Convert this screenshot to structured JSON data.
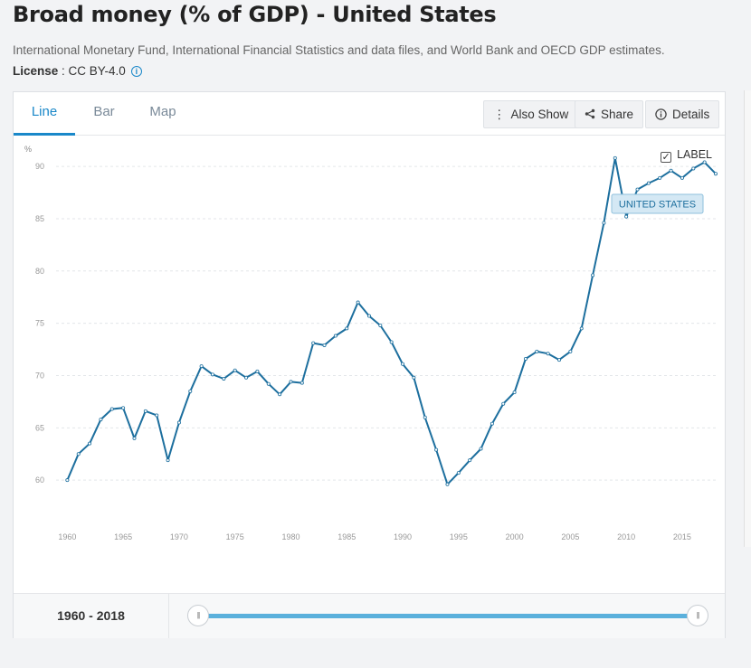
{
  "page": {
    "title": "Broad money (% of GDP) - United States",
    "source": "International Monetary Fund, International Financial Statistics and data files, and World Bank and OECD GDP estimates.",
    "license_label": "License",
    "license_value": " : CC BY-4.0"
  },
  "tabs": [
    {
      "label": "Line",
      "active": true
    },
    {
      "label": "Bar",
      "active": false
    },
    {
      "label": "Map",
      "active": false
    }
  ],
  "toolbar": {
    "also_show": "Also Show",
    "share": "Share",
    "details": "Details"
  },
  "label_toggle": {
    "text": "LABEL",
    "checked": true
  },
  "range": {
    "text": "1960 - 2018",
    "start": 1960,
    "end": 2018
  },
  "colors": {
    "line": "#1d6f9e",
    "accent": "#1a88c9"
  },
  "chart_data": {
    "type": "line",
    "ylabel": "%",
    "ylim": [
      55,
      92
    ],
    "xlim": [
      1959,
      2018
    ],
    "yticks": [
      60,
      65,
      70,
      75,
      80,
      85,
      90
    ],
    "xticks": [
      1960,
      1965,
      1970,
      1975,
      1980,
      1985,
      1990,
      1995,
      2000,
      2005,
      2010,
      2015
    ],
    "grid": true,
    "series": [
      {
        "name": "UNITED STATES",
        "x": [
          1960,
          1961,
          1962,
          1963,
          1964,
          1965,
          1966,
          1967,
          1968,
          1969,
          1970,
          1971,
          1972,
          1973,
          1974,
          1975,
          1976,
          1977,
          1978,
          1979,
          1980,
          1981,
          1982,
          1983,
          1984,
          1985,
          1986,
          1987,
          1988,
          1989,
          1990,
          1991,
          1992,
          1993,
          1994,
          1995,
          1996,
          1997,
          1998,
          1999,
          2000,
          2001,
          2002,
          2003,
          2004,
          2005,
          2006,
          2007,
          2008,
          2009,
          2010,
          2011,
          2012,
          2013,
          2014,
          2015,
          2016,
          2017,
          2018
        ],
        "values": [
          60.0,
          62.5,
          63.5,
          65.8,
          66.8,
          66.9,
          64.0,
          66.6,
          66.2,
          61.9,
          65.5,
          68.5,
          70.9,
          70.1,
          69.7,
          70.5,
          69.8,
          70.4,
          69.2,
          68.2,
          69.4,
          69.3,
          73.1,
          72.9,
          73.8,
          74.5,
          77.0,
          75.7,
          74.8,
          73.2,
          71.1,
          69.8,
          66.0,
          62.9,
          59.6,
          60.7,
          61.9,
          63.0,
          65.4,
          67.3,
          68.4,
          71.6,
          72.3,
          72.1,
          71.5,
          72.3,
          74.5,
          79.6,
          84.6,
          90.8,
          85.2,
          87.8,
          88.4,
          88.9,
          89.6,
          88.9,
          89.8,
          90.4,
          89.3
        ]
      }
    ]
  }
}
